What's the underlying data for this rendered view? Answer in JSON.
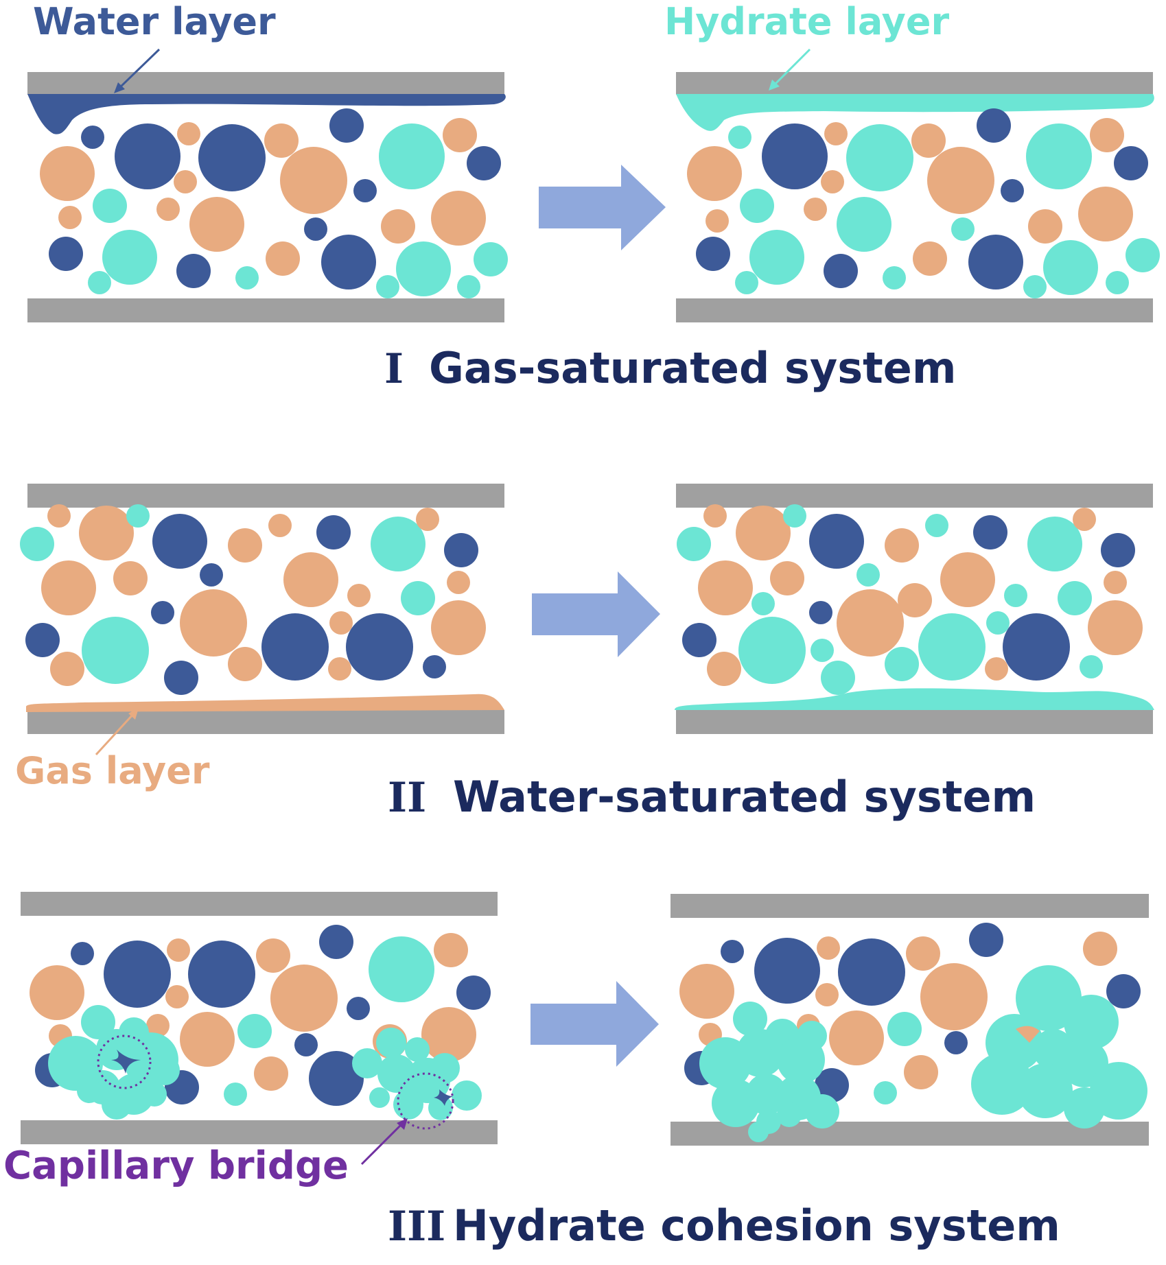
{
  "colors": {
    "dark_blue": "#3d5a98",
    "cyan": "#6ce5d4",
    "orange": "#e8ab80",
    "gray_plate": "#a0a0a0",
    "arrow_fill": "#8fa8dc",
    "purple": "#7030a0",
    "caption_navy": "#1b2a5e"
  },
  "labels": {
    "water_layer": "Water layer",
    "hydrate_layer": "Hydrate layer",
    "gas_layer": "Gas layer",
    "capillary_bridge": "Capillary bridge"
  },
  "captions": {
    "system_1": {
      "numeral": "I",
      "text": "Gas-saturated system"
    },
    "system_2": {
      "numeral": "II",
      "text": "Water-saturated system"
    },
    "system_3": {
      "numeral": "III",
      "text": "Hydrate cohesion system"
    }
  },
  "legend_semantics": {
    "dark_blue_particle": "water",
    "cyan_particle": "hydrate",
    "orange_particle": "gas"
  }
}
